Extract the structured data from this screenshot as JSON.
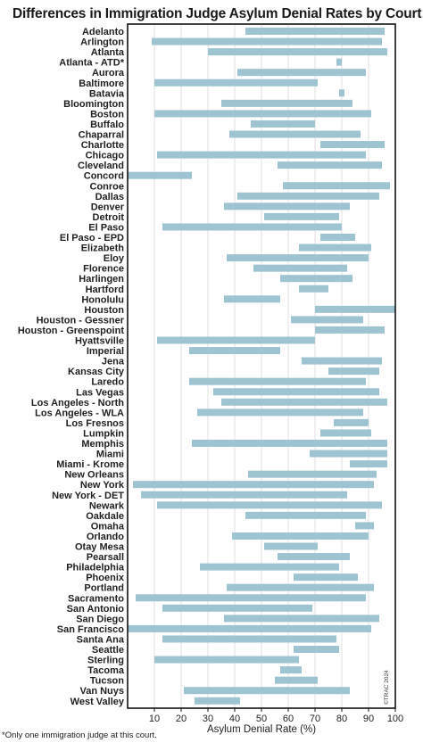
{
  "title": "Differences in Immigration Judge Asylum Denial Rates by Court",
  "footnote": "*Only one immigration judge at this court.",
  "credit": "©TRAC 2024",
  "colors": {
    "bar": "#9ec4d1",
    "grid": "#e2e2e2",
    "frame": "#111111"
  },
  "chart_data": {
    "type": "bar",
    "orientation": "horizontal-range",
    "title": "Differences in Immigration Judge Asylum Denial Rates by Court",
    "xlabel": "Asylum Denial Rate (%)",
    "xlim": [
      0,
      100
    ],
    "xticks": [
      10,
      20,
      30,
      40,
      50,
      60,
      70,
      80,
      90,
      100
    ],
    "grid": "vertical",
    "categories": [
      "Adelanto",
      "Arlington",
      "Atlanta",
      "Atlanta - ATD*",
      "Aurora",
      "Baltimore",
      "Batavia",
      "Bloomington",
      "Boston",
      "Buffalo",
      "Chaparral",
      "Charlotte",
      "Chicago",
      "Cleveland",
      "Concord",
      "Conroe",
      "Dallas",
      "Denver",
      "Detroit",
      "El Paso",
      "El Paso - EPD",
      "Elizabeth",
      "Eloy",
      "Florence",
      "Harlingen",
      "Hartford",
      "Honolulu",
      "Houston",
      "Houston - Gessner",
      "Houston - Greenspoint",
      "Hyattsville",
      "Imperial",
      "Jena",
      "Kansas City",
      "Laredo",
      "Las Vegas",
      "Los Angeles - North",
      "Los Angeles - WLA",
      "Los Fresnos",
      "Lumpkin",
      "Memphis",
      "Miami",
      "Miami - Krome",
      "New Orleans",
      "New York",
      "New York - DET",
      "Newark",
      "Oakdale",
      "Omaha",
      "Orlando",
      "Otay Mesa",
      "Pearsall",
      "Philadelphia",
      "Phoenix",
      "Portland",
      "Sacramento",
      "San Antonio",
      "San Diego",
      "San Francisco",
      "Santa Ana",
      "Seattle",
      "Sterling",
      "Tacoma",
      "Tucson",
      "Van Nuys",
      "West Valley"
    ],
    "series": [
      {
        "low": [
          44,
          9,
          30,
          78,
          41,
          10,
          79,
          35,
          10,
          46,
          38,
          72,
          11,
          56,
          0,
          58,
          41,
          36,
          51,
          13,
          72,
          64,
          37,
          47,
          57,
          64,
          36,
          70,
          61,
          70,
          11,
          23,
          65,
          75,
          23,
          32,
          35,
          26,
          77,
          72,
          24,
          68,
          83,
          45,
          2,
          5,
          11,
          44,
          85,
          39,
          51,
          56,
          27,
          62,
          37,
          3,
          13,
          36,
          0,
          13,
          62,
          10,
          57,
          55,
          21,
          25
        ],
        "high": [
          96,
          95,
          97,
          80,
          89,
          71,
          81,
          84,
          91,
          70,
          87,
          96,
          89,
          95,
          24,
          98,
          94,
          83,
          79,
          80,
          85,
          91,
          90,
          82,
          84,
          75,
          57,
          100,
          88,
          96,
          70,
          57,
          95,
          94,
          89,
          94,
          97,
          88,
          90,
          91,
          97,
          97,
          97,
          93,
          92,
          82,
          95,
          89,
          92,
          90,
          71,
          83,
          79,
          86,
          92,
          89,
          69,
          94,
          91,
          78,
          79,
          64,
          65,
          71,
          83,
          42
        ]
      }
    ]
  }
}
